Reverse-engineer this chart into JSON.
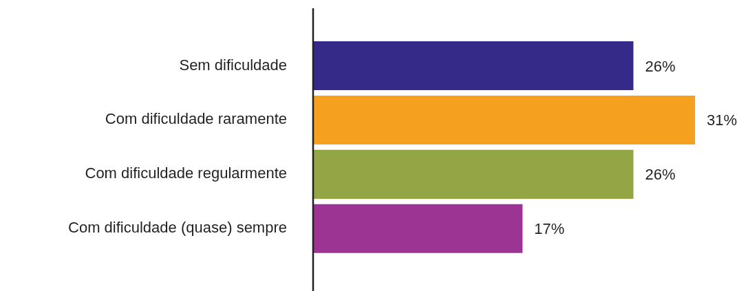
{
  "chart_data": {
    "type": "bar",
    "orientation": "horizontal",
    "categories": [
      "Sem dificuldade",
      "Com dificuldade raramente",
      "Com dificuldade regularmente",
      "Com dificuldade (quase) sempre"
    ],
    "values": [
      26,
      31,
      26,
      17
    ],
    "colors": [
      "#352a87",
      "#f5a01e",
      "#93a545",
      "#9b3493"
    ],
    "value_labels": [
      "26%",
      "31%",
      "26%",
      "17%"
    ],
    "grid": false,
    "legend": false
  }
}
